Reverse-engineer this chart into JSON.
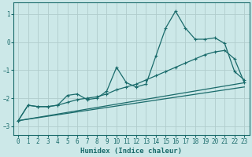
{
  "xlabel": "Humidex (Indice chaleur)",
  "bg_color": "#cce8e8",
  "grid_color": "#b0cccc",
  "line_color": "#1a6b6b",
  "xlim": [
    -0.5,
    23.5
  ],
  "ylim": [
    -3.3,
    1.4
  ],
  "xticks": [
    0,
    1,
    2,
    3,
    4,
    5,
    6,
    7,
    8,
    9,
    10,
    11,
    12,
    13,
    14,
    15,
    16,
    17,
    18,
    19,
    20,
    21,
    22,
    23
  ],
  "yticks": [
    -3,
    -2,
    -1,
    0,
    1
  ],
  "series": [
    {
      "x": [
        0,
        1,
        2,
        3,
        4,
        5,
        6,
        7,
        8,
        9,
        10,
        11,
        12,
        13,
        14,
        15,
        16,
        17,
        18,
        19,
        20,
        21,
        22,
        23
      ],
      "y": [
        -2.8,
        -2.25,
        -2.3,
        -2.3,
        -2.25,
        -1.9,
        -1.85,
        -2.05,
        -2.0,
        -1.75,
        -0.9,
        -1.45,
        -1.6,
        -1.5,
        -0.5,
        0.5,
        1.1,
        0.5,
        0.1,
        0.1,
        0.15,
        -0.05,
        -1.05,
        -1.35
      ],
      "marker": "+",
      "markersize": 3.5,
      "linewidth": 0.9
    },
    {
      "x": [
        0,
        1,
        2,
        3,
        4,
        5,
        6,
        7,
        8,
        9,
        10,
        11,
        12,
        13,
        14,
        15,
        16,
        17,
        18,
        19,
        20,
        21,
        22,
        23
      ],
      "y": [
        -2.8,
        -2.25,
        -2.3,
        -2.3,
        -2.25,
        -2.15,
        -2.05,
        -2.0,
        -1.95,
        -1.85,
        -1.7,
        -1.6,
        -1.5,
        -1.35,
        -1.2,
        -1.05,
        -0.9,
        -0.75,
        -0.6,
        -0.45,
        -0.35,
        -0.3,
        -0.6,
        -1.45
      ],
      "marker": "+",
      "markersize": 3.0,
      "linewidth": 0.9
    },
    {
      "x": [
        0,
        23
      ],
      "y": [
        -2.8,
        -1.45
      ],
      "marker": null,
      "markersize": 0,
      "linewidth": 0.9
    },
    {
      "x": [
        0,
        23
      ],
      "y": [
        -2.8,
        -1.6
      ],
      "marker": null,
      "markersize": 0,
      "linewidth": 0.9
    }
  ]
}
